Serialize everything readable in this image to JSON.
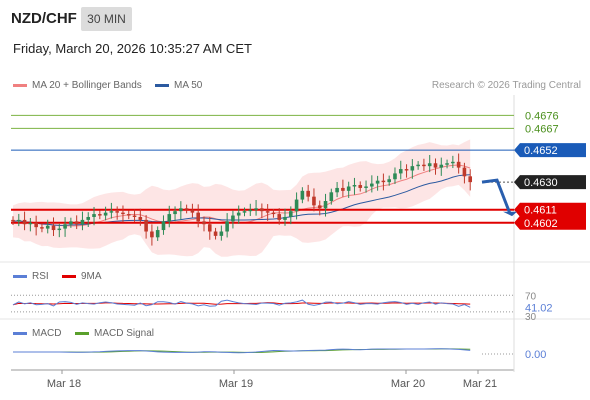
{
  "header": {
    "pair": "NZD/CHF",
    "timeframe": "30 MIN",
    "datetime": "Friday, March 20, 2026 10:35:27 AM CET"
  },
  "legend": {
    "ma20_bb": "MA 20 + Bollinger Bands",
    "ma50": "MA 50",
    "credit": "Research © 2026 Trading Central"
  },
  "rsi_legend": {
    "rsi": "RSI",
    "ma": "9MA"
  },
  "macd_legend": {
    "macd": "MACD",
    "signal": "MACD Signal"
  },
  "colors": {
    "up": "#2e8b57",
    "down": "#c0392b",
    "ma20": "#f08080",
    "ma50": "#2c5aa0",
    "resist": "#7cb342",
    "support": "#e00000",
    "pivot": "#1a5bb8",
    "current": "#222222",
    "rsi": "#5b7fd6",
    "macd": "#5b7fd6",
    "signal": "#5aa02c"
  },
  "chart_data": [
    {
      "type": "candlestick",
      "title": "NZD/CHF",
      "ylim": [
        0.4575,
        0.469
      ],
      "levels": [
        {
          "value": 0.4676,
          "label": "0.4676",
          "kind": "resistance"
        },
        {
          "value": 0.4667,
          "label": "0.4667",
          "kind": "resistance"
        },
        {
          "value": 0.4652,
          "label": "0.4652",
          "kind": "pivot"
        },
        {
          "value": 0.463,
          "label": "0.4630",
          "kind": "current"
        },
        {
          "value": 0.4611,
          "label": "0.4611",
          "kind": "support"
        },
        {
          "value": 0.4602,
          "label": "0.4602",
          "kind": "support"
        }
      ],
      "x_ticks": [
        "Mar 18",
        "Mar 19",
        "Mar 20",
        "Mar 21"
      ],
      "closes": [
        0.4603,
        0.4604,
        0.4601,
        0.4602,
        0.4599,
        0.4598,
        0.46,
        0.4597,
        0.4598,
        0.4601,
        0.4603,
        0.4601,
        0.4604,
        0.4606,
        0.4608,
        0.4607,
        0.4609,
        0.461,
        0.4609,
        0.4608,
        0.4607,
        0.4606,
        0.4604,
        0.4596,
        0.4592,
        0.4597,
        0.4603,
        0.4608,
        0.461,
        0.4612,
        0.4611,
        0.4609,
        0.4603,
        0.4601,
        0.4596,
        0.4593,
        0.4596,
        0.4603,
        0.4607,
        0.4609,
        0.461,
        0.4611,
        0.4612,
        0.461,
        0.4609,
        0.4608,
        0.4604,
        0.4606,
        0.461,
        0.4618,
        0.4624,
        0.462,
        0.4614,
        0.4612,
        0.4617,
        0.4623,
        0.4626,
        0.4624,
        0.4627,
        0.4628,
        0.4626,
        0.4627,
        0.4629,
        0.4631,
        0.463,
        0.4632,
        0.4636,
        0.4639,
        0.4638,
        0.4641,
        0.4642,
        0.4641,
        0.4643,
        0.464,
        0.4642,
        0.4643,
        0.4644,
        0.464,
        0.4634,
        0.463
      ],
      "ma20_bollinger": "MA 20 + Bollinger Bands",
      "ma50": "MA 50",
      "forecast": "down"
    },
    {
      "type": "line",
      "title": "RSI",
      "series": [
        {
          "name": "RSI"
        },
        {
          "name": "9MA"
        }
      ],
      "levels": [
        70,
        30
      ],
      "labels": [
        "70",
        "41.02",
        "30"
      ],
      "current": 41.02
    },
    {
      "type": "line",
      "title": "MACD",
      "series": [
        {
          "name": "MACD"
        },
        {
          "name": "MACD Signal"
        }
      ],
      "labels": [
        "0.00"
      ],
      "current": 0.0
    }
  ]
}
